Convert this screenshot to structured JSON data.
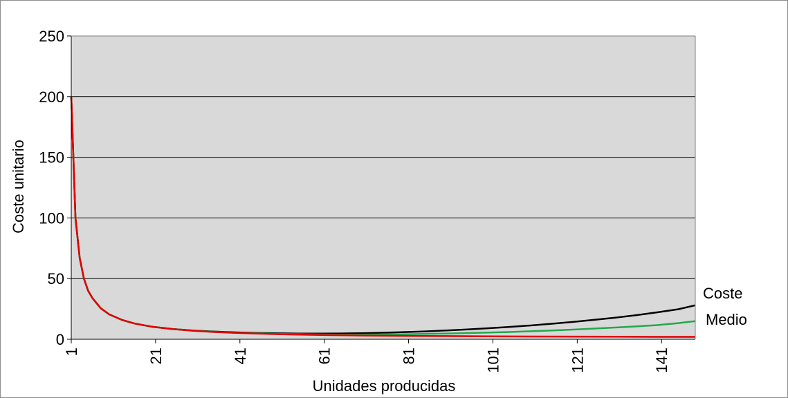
{
  "chart_data": {
    "type": "line",
    "title": "",
    "xlabel": "Unidades producidas",
    "ylabel": "Coste unitario",
    "xlim": [
      1,
      149
    ],
    "ylim": [
      0,
      250
    ],
    "y_ticks": [
      0,
      50,
      100,
      150,
      200,
      250
    ],
    "x_ticks": [
      1,
      21,
      41,
      61,
      81,
      101,
      121,
      141
    ],
    "grid": "horizontal",
    "plot_background": "#d9d9d9",
    "annotation": [
      "Coste",
      "Medio"
    ],
    "series": [
      {
        "color": "#000000",
        "x": [
          1,
          2,
          3,
          4,
          5,
          6,
          8,
          10,
          13,
          16,
          20,
          25,
          30,
          35,
          40,
          45,
          50,
          55,
          60,
          65,
          70,
          75,
          80,
          85,
          90,
          95,
          100,
          105,
          110,
          115,
          120,
          125,
          130,
          135,
          140,
          145,
          149
        ],
        "values": [
          200,
          100,
          67,
          50,
          40,
          34,
          25.5,
          20.5,
          16,
          13,
          10.4,
          8.5,
          7.2,
          6.3,
          5.7,
          5.2,
          4.9,
          4.7,
          4.7,
          4.8,
          5.0,
          5.4,
          5.9,
          6.5,
          7.3,
          8.1,
          9.1,
          10.2,
          11.4,
          12.8,
          14.3,
          16.0,
          17.8,
          19.9,
          22.2,
          24.8,
          28.0
        ]
      },
      {
        "color": "#22a84b",
        "x": [
          1,
          2,
          3,
          4,
          5,
          6,
          8,
          10,
          13,
          16,
          20,
          25,
          30,
          35,
          40,
          45,
          50,
          55,
          60,
          65,
          70,
          75,
          80,
          85,
          90,
          95,
          100,
          105,
          110,
          115,
          120,
          125,
          130,
          135,
          140,
          145,
          149
        ],
        "values": [
          200,
          100,
          67,
          50,
          40,
          34,
          25.5,
          20.5,
          16,
          13,
          10.4,
          8.5,
          7.1,
          6.1,
          5.4,
          4.9,
          4.5,
          4.2,
          4.0,
          3.9,
          3.9,
          4.0,
          4.1,
          4.4,
          4.7,
          5.1,
          5.5,
          6.0,
          6.6,
          7.3,
          8.0,
          8.8,
          9.7,
          10.6,
          11.7,
          13.3,
          15.0
        ]
      },
      {
        "color": "#e00000",
        "x": [
          1,
          2,
          3,
          4,
          5,
          6,
          8,
          10,
          13,
          16,
          20,
          25,
          30,
          35,
          40,
          45,
          50,
          55,
          60,
          70,
          80,
          90,
          100,
          110,
          120,
          130,
          140,
          149
        ],
        "values": [
          200,
          100,
          67,
          50,
          40,
          34,
          25.5,
          20.5,
          16,
          13,
          10.4,
          8.4,
          7.0,
          6.0,
          5.3,
          4.7,
          4.2,
          3.9,
          3.6,
          3.1,
          2.8,
          2.6,
          2.4,
          2.3,
          2.2,
          2.1,
          2.0,
          2.0
        ]
      }
    ]
  }
}
